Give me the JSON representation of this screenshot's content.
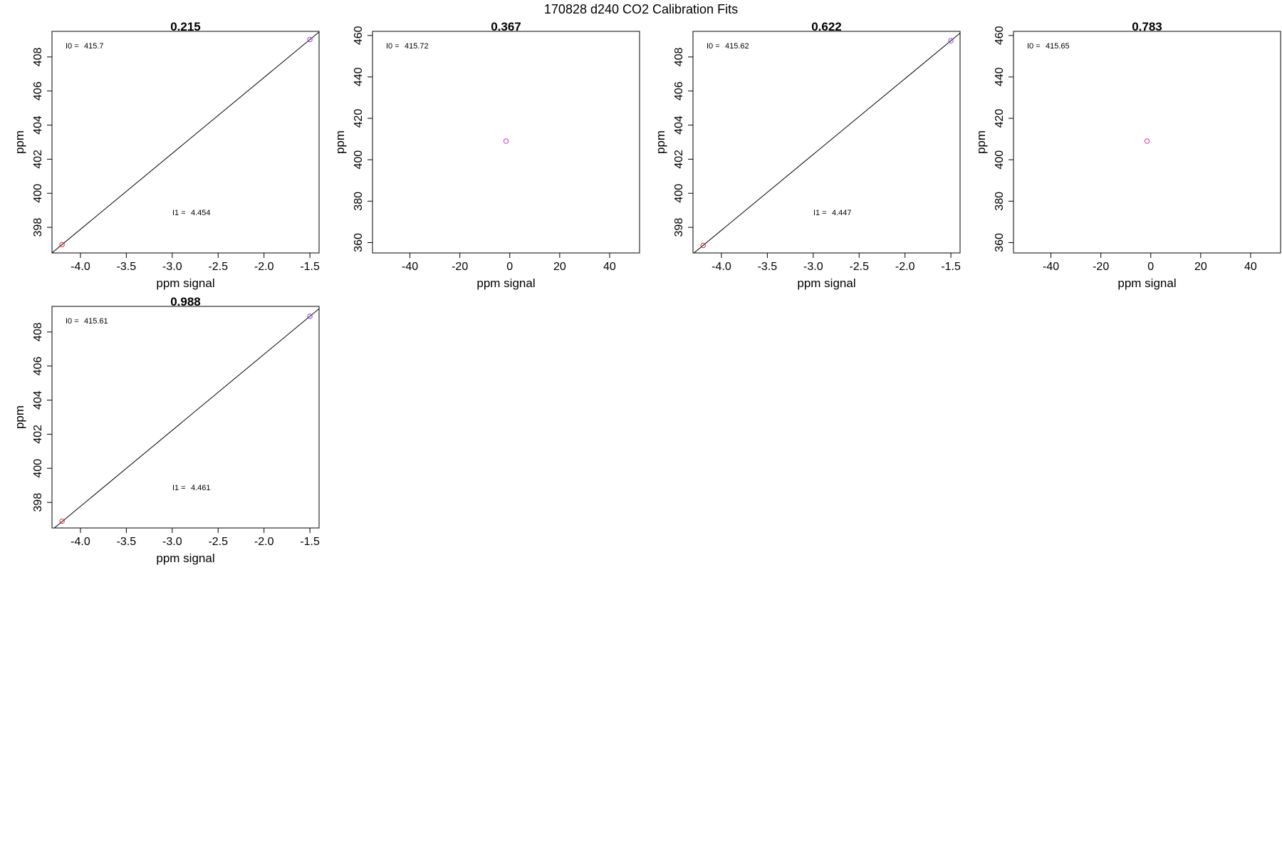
{
  "page": {
    "title": "170828   d240   CO2 Calibration Fits"
  },
  "chart_data": [
    {
      "type": "scatter",
      "title": "0.215",
      "xlabel": "ppm signal",
      "ylabel": "ppm",
      "xlim": [
        -4.31,
        -1.4
      ],
      "ylim": [
        396.5,
        409.5
      ],
      "xticks": [
        -4.0,
        -3.5,
        -3.0,
        -2.5,
        -2.0,
        -1.5
      ],
      "xtick_labels": [
        "-4.0",
        "-3.5",
        "-3.0",
        "-2.5",
        "-2.0",
        "-1.5"
      ],
      "yticks": [
        398,
        400,
        402,
        404,
        406,
        408
      ],
      "ytick_labels": [
        "398",
        "400",
        "402",
        "404",
        "406",
        "408"
      ],
      "grid": false,
      "points": [
        {
          "x": -4.2,
          "y": 396.99,
          "color": "#e03030"
        },
        {
          "x": -1.5,
          "y": 409.02,
          "color": "#9040e0"
        }
      ],
      "fit_line": {
        "intercept": 415.7,
        "slope": 4.454
      },
      "annotations": [
        {
          "label": "I0 =",
          "value": "415.7",
          "pos": "top-left"
        },
        {
          "label": "I1 =",
          "value": "4.454",
          "pos": "bottom-center"
        }
      ]
    },
    {
      "type": "scatter",
      "title": "0.367",
      "xlabel": "ppm signal",
      "ylabel": "ppm",
      "xlim": [
        -55,
        52
      ],
      "ylim": [
        355,
        462
      ],
      "xticks": [
        -40,
        -20,
        0,
        20,
        40
      ],
      "xtick_labels": [
        "-40",
        "-20",
        "0",
        "20",
        "40"
      ],
      "yticks": [
        360,
        380,
        400,
        420,
        440,
        460
      ],
      "ytick_labels": [
        "360",
        "380",
        "400",
        "420",
        "440",
        "460"
      ],
      "grid": false,
      "points": [
        {
          "x": -1.5,
          "y": 409.0,
          "color": "#d030d0"
        }
      ],
      "fit_line": null,
      "annotations": [
        {
          "label": "I0 =",
          "value": "415.72",
          "pos": "top-left"
        }
      ]
    },
    {
      "type": "scatter",
      "title": "0.622",
      "xlabel": "ppm signal",
      "ylabel": "ppm",
      "xlim": [
        -4.31,
        -1.4
      ],
      "ylim": [
        396.5,
        409.5
      ],
      "xticks": [
        -4.0,
        -3.5,
        -3.0,
        -2.5,
        -2.0,
        -1.5
      ],
      "xtick_labels": [
        "-4.0",
        "-3.5",
        "-3.0",
        "-2.5",
        "-2.0",
        "-1.5"
      ],
      "yticks": [
        398,
        400,
        402,
        404,
        406,
        408
      ],
      "ytick_labels": [
        "398",
        "400",
        "402",
        "404",
        "406",
        "408"
      ],
      "grid": false,
      "points": [
        {
          "x": -4.2,
          "y": 396.94,
          "color": "#e03030"
        },
        {
          "x": -1.5,
          "y": 408.95,
          "color": "#9040e0"
        }
      ],
      "fit_line": {
        "intercept": 415.62,
        "slope": 4.447
      },
      "annotations": [
        {
          "label": "I0 =",
          "value": "415.62",
          "pos": "top-left"
        },
        {
          "label": "I1 =",
          "value": "4.447",
          "pos": "bottom-center"
        }
      ]
    },
    {
      "type": "scatter",
      "title": "0.783",
      "xlabel": "ppm signal",
      "ylabel": "ppm",
      "xlim": [
        -55,
        52
      ],
      "ylim": [
        355,
        462
      ],
      "xticks": [
        -40,
        -20,
        0,
        20,
        40
      ],
      "xtick_labels": [
        "-40",
        "-20",
        "0",
        "20",
        "40"
      ],
      "yticks": [
        360,
        380,
        400,
        420,
        440,
        460
      ],
      "ytick_labels": [
        "360",
        "380",
        "400",
        "420",
        "440",
        "460"
      ],
      "grid": false,
      "points": [
        {
          "x": -1.5,
          "y": 409.0,
          "color": "#d030d0"
        }
      ],
      "fit_line": null,
      "annotations": [
        {
          "label": "I0 =",
          "value": "415.65",
          "pos": "top-left"
        }
      ]
    },
    {
      "type": "scatter",
      "title": "0.988",
      "xlabel": "ppm signal",
      "ylabel": "ppm",
      "xlim": [
        -4.31,
        -1.4
      ],
      "ylim": [
        396.5,
        409.5
      ],
      "xticks": [
        -4.0,
        -3.5,
        -3.0,
        -2.5,
        -2.0,
        -1.5
      ],
      "xtick_labels": [
        "-4.0",
        "-3.5",
        "-3.0",
        "-2.5",
        "-2.0",
        "-1.5"
      ],
      "yticks": [
        398,
        400,
        402,
        404,
        406,
        408
      ],
      "ytick_labels": [
        "398",
        "400",
        "402",
        "404",
        "406",
        "408"
      ],
      "grid": false,
      "points": [
        {
          "x": -4.2,
          "y": 396.9,
          "color": "#e03030"
        },
        {
          "x": -1.5,
          "y": 408.92,
          "color": "#9040e0"
        }
      ],
      "fit_line": {
        "intercept": 415.61,
        "slope": 4.461
      },
      "annotations": [
        {
          "label": "I0 =",
          "value": "415.61",
          "pos": "top-left"
        },
        {
          "label": "I1 =",
          "value": "4.461",
          "pos": "bottom-center"
        }
      ]
    }
  ]
}
